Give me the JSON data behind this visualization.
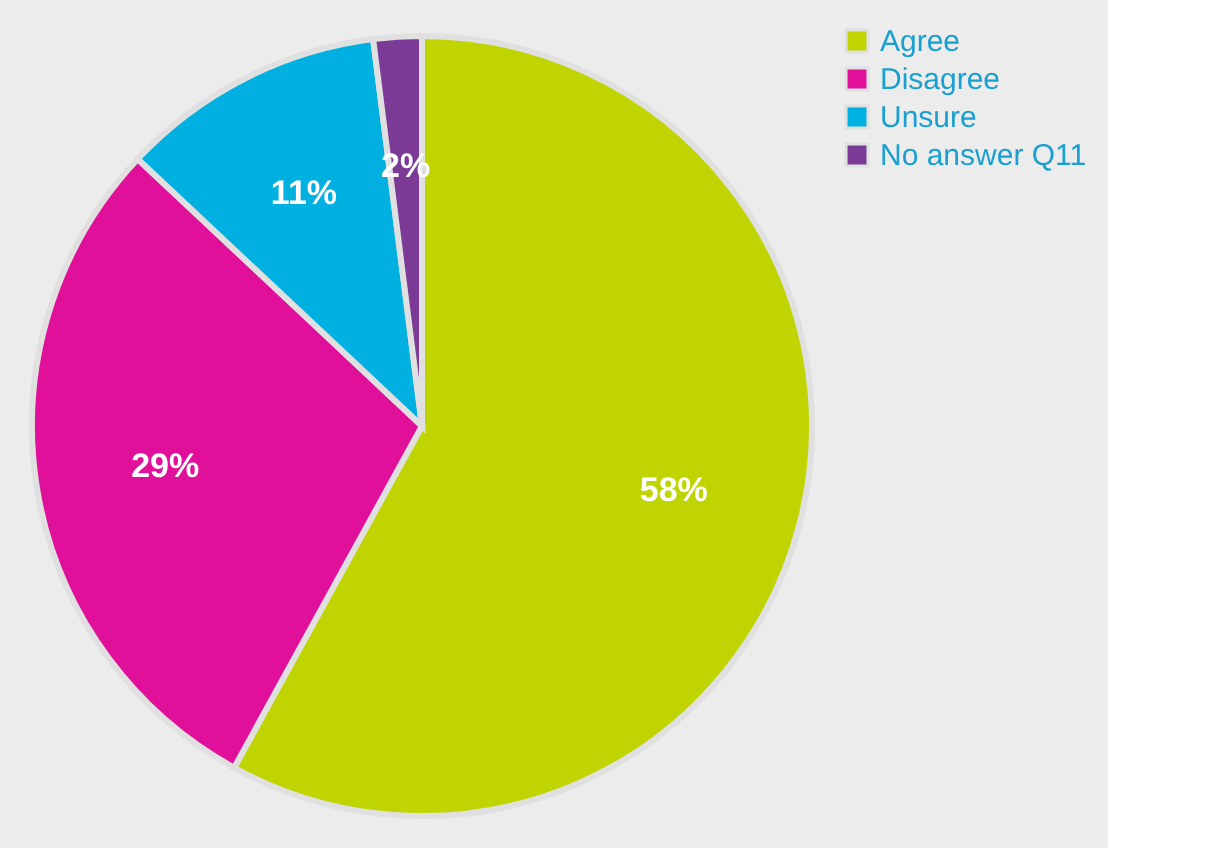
{
  "chart_data": {
    "type": "pie",
    "categories": [
      "Agree",
      "Disagree",
      "Unsure",
      "No answer Q11"
    ],
    "values": [
      58,
      29,
      11,
      2
    ],
    "colors": [
      "#bfd400",
      "#e0109a",
      "#00b0e0",
      "#7b3a96"
    ],
    "value_labels": [
      "58%",
      "29%",
      "11%",
      "2%"
    ],
    "legend": "top right"
  }
}
